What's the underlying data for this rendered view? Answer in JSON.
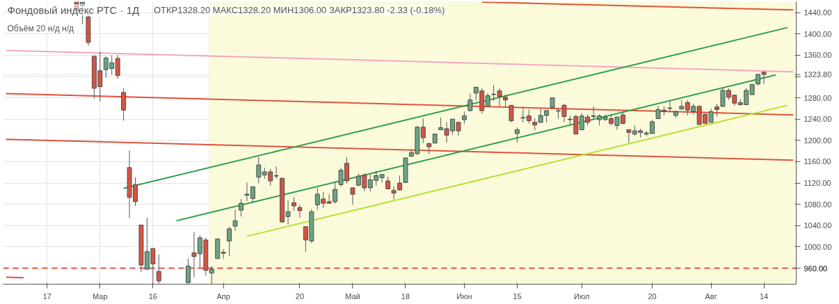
{
  "chart_data": {
    "type": "candlestick",
    "title": "Фондовый индекс РТС · 1Д",
    "subtitle": "Объём 20  н/д н/д",
    "annotations": [
      "ОТКР1328.20 МАКС1328.20 МИН1306.00 ЗАКР1323.80 -2.33 (-0.18%)"
    ],
    "categories": [
      null,
      null,
      null,
      null,
      null,
      null,
      null,
      "17",
      null,
      null,
      null,
      null,
      null,
      null,
      null,
      null,
      "Мар",
      null,
      null,
      null,
      null,
      null,
      null,
      null,
      null,
      "16",
      null,
      null,
      null,
      null,
      null,
      null,
      null,
      null,
      null,
      null,
      null,
      "Апр",
      null,
      null,
      null,
      null,
      null,
      null,
      null,
      null,
      null,
      null,
      null,
      null,
      "20",
      null,
      null,
      null,
      null,
      null,
      null,
      null,
      null,
      "Май",
      null,
      null,
      null,
      null,
      null,
      null,
      null,
      null,
      "18",
      null,
      null,
      null,
      null,
      null,
      null,
      null,
      null,
      null,
      "Июн",
      null,
      null,
      null,
      null,
      null,
      null,
      null,
      null,
      "15",
      null,
      null,
      null,
      null,
      null,
      null,
      null,
      null,
      null,
      null,
      "Июл",
      null,
      null,
      null,
      null,
      null,
      null,
      null,
      null,
      null,
      null,
      null,
      "20",
      null,
      null,
      null,
      null,
      null,
      null,
      null,
      null,
      null,
      "Авг",
      null,
      null,
      null,
      null,
      null,
      null,
      null,
      null,
      "14",
      null,
      null,
      null,
      null,
      null
    ],
    "ohlc": [
      null,
      null,
      null,
      null,
      null,
      null,
      null,
      null,
      null,
      null,
      null,
      null,
      [
        1460,
        1460,
        1444,
        1444
      ],
      [
        1453,
        1460,
        1418,
        1460
      ],
      [
        1432,
        1444,
        1378,
        1384
      ],
      [
        1358,
        1360,
        1278,
        1298
      ],
      [
        1331,
        1367,
        1273,
        1301
      ],
      [
        1333,
        1358,
        1318,
        1355
      ],
      [
        1335,
        1360,
        1324,
        1346
      ],
      [
        1354,
        1360,
        1316,
        1322
      ],
      [
        1290,
        1298,
        1237,
        1257
      ],
      [
        1149,
        1181,
        1054,
        1093
      ],
      [
        1117,
        1131,
        1077,
        1085
      ],
      [
        1041,
        1042,
        953,
        966
      ],
      [
        958,
        1055,
        957,
        991
      ],
      [
        997,
        997,
        931,
        968
      ],
      [
        954,
        986,
        931,
        936
      ],
      null,
      null,
      null,
      null,
      [
        933,
        978,
        931,
        964
      ],
      [
        989,
        1028,
        943,
        982
      ],
      [
        987,
        1022,
        961,
        1017
      ],
      [
        1013,
        1017,
        946,
        956
      ],
      [
        951,
        964,
        931,
        958
      ],
      [
        978,
        1015,
        978,
        1015
      ],
      [
        990,
        996,
        978,
        988
      ],
      [
        1011,
        1038,
        983,
        1034
      ],
      [
        1039,
        1070,
        1030,
        1049
      ],
      [
        1069,
        1090,
        1057,
        1082
      ],
      [
        1097,
        1121,
        1086,
        1099
      ],
      [
        1091,
        1113,
        1083,
        1113
      ],
      [
        1131,
        1169,
        1119,
        1154
      ],
      [
        1135,
        1149,
        1128,
        1141
      ],
      [
        1141,
        1147,
        1115,
        1124
      ],
      [
        1134,
        1151,
        1128,
        1133
      ],
      [
        1129,
        1129,
        1045,
        1047
      ],
      [
        1057,
        1088,
        1042,
        1066
      ],
      [
        1083,
        1093,
        1068,
        1077
      ],
      [
        1074,
        1079,
        1055,
        1068
      ],
      [
        1038,
        1039,
        991,
        1013
      ],
      [
        1011,
        1071,
        1007,
        1066
      ],
      [
        1079,
        1111,
        1070,
        1099
      ],
      [
        1090,
        1103,
        1073,
        1082
      ],
      [
        1085,
        1099,
        1082,
        1082
      ],
      [
        1085,
        1123,
        1081,
        1108
      ],
      [
        1117,
        1148,
        1113,
        1144
      ],
      [
        1157,
        1169,
        1119,
        1124
      ],
      [
        1111,
        1111,
        1079,
        1099
      ],
      [
        1116,
        1138,
        1114,
        1133
      ],
      [
        1135,
        1138,
        1105,
        1111
      ],
      [
        1111,
        1136,
        1104,
        1126
      ],
      [
        1125,
        1143,
        1115,
        1134
      ],
      [
        1130,
        1136,
        1121,
        1136
      ],
      [
        1124,
        1132,
        1109,
        1109
      ],
      [
        1106,
        1114,
        1089,
        1101
      ],
      [
        1120,
        1134,
        1106,
        1107
      ],
      [
        1121,
        1168,
        1120,
        1167
      ],
      [
        1170,
        1183,
        1170,
        1177
      ],
      [
        1175,
        1227,
        1173,
        1225
      ],
      [
        1225,
        1241,
        1195,
        1205
      ],
      [
        1194,
        1196,
        1174,
        1188
      ],
      [
        1195,
        1212,
        1195,
        1212
      ],
      [
        1220,
        1243,
        1220,
        1224
      ],
      [
        1222,
        1234,
        1196,
        1210
      ],
      [
        1218,
        1240,
        1211,
        1240
      ],
      [
        1234,
        1234,
        1209,
        1218
      ],
      [
        1239,
        1254,
        1231,
        1246
      ],
      [
        1256,
        1288,
        1254,
        1276
      ],
      [
        1289,
        1300,
        1275,
        1300
      ],
      [
        1293,
        1298,
        1250,
        1256
      ],
      [
        1264,
        1289,
        1264,
        1284
      ],
      [
        1286,
        1304,
        1274,
        1287
      ],
      [
        1293,
        1298,
        1264,
        1282
      ],
      [
        1281,
        1286,
        1264,
        1276
      ],
      [
        1266,
        1266,
        1234,
        1237
      ],
      [
        1213,
        1224,
        1196,
        1220
      ],
      [
        1242,
        1263,
        1234,
        1243
      ],
      [
        1246,
        1258,
        1232,
        1237
      ],
      [
        1234,
        1242,
        1219,
        1229
      ],
      [
        1234,
        1259,
        1233,
        1247
      ],
      [
        1247,
        1256,
        1234,
        1256
      ],
      [
        1262,
        1281,
        1261,
        1280
      ],
      [
        1256,
        1261,
        1241,
        1255
      ],
      [
        1266,
        1269,
        1234,
        1245
      ],
      [
        1240,
        1247,
        1230,
        1239
      ],
      [
        1245,
        1248,
        1212,
        1212
      ],
      [
        1220,
        1251,
        1220,
        1246
      ],
      [
        1244,
        1249,
        1228,
        1234
      ],
      [
        1245,
        1264,
        1239,
        1246
      ],
      [
        1239,
        1249,
        1228,
        1246
      ],
      [
        1239,
        1249,
        1237,
        1244
      ],
      [
        1241,
        1250,
        1228,
        1232
      ],
      [
        1228,
        1244,
        1220,
        1244
      ],
      [
        1248,
        1252,
        1230,
        1232
      ],
      [
        1220,
        1220,
        1196,
        1215
      ],
      [
        1212,
        1228,
        1209,
        1218
      ],
      [
        1215,
        1222,
        1205,
        1218
      ],
      [
        1212,
        1218,
        1208,
        1214
      ],
      [
        1213,
        1239,
        1213,
        1235
      ],
      [
        1241,
        1265,
        1240,
        1258
      ],
      [
        1257,
        1264,
        1247,
        1254
      ],
      [
        1261,
        1274,
        1253,
        1260
      ],
      [
        1247,
        1256,
        1242,
        1254
      ],
      [
        1259,
        1275,
        1258,
        1264
      ],
      [
        1271,
        1276,
        1247,
        1257
      ],
      [
        1254,
        1269,
        1249,
        1264
      ],
      [
        1264,
        1266,
        1229,
        1230
      ],
      [
        1249,
        1251,
        1231,
        1232
      ],
      [
        1234,
        1260,
        1234,
        1254
      ],
      [
        1263,
        1269,
        1245,
        1258
      ],
      [
        1264,
        1298,
        1263,
        1294
      ],
      [
        1294,
        1298,
        1276,
        1281
      ],
      [
        1285,
        1286,
        1265,
        1270
      ],
      [
        1271,
        1278,
        1267,
        1267
      ],
      [
        1267,
        1298,
        1267,
        1294
      ],
      [
        1286,
        1305,
        1285,
        1305
      ],
      [
        1306,
        1325,
        1303,
        1324
      ],
      [
        1328.2,
        1328.2,
        1306,
        1323.8
      ],
      null,
      null,
      null,
      null,
      null
    ],
    "series": [
      {
        "type": "line",
        "color": "#f4a6c0",
        "values": [
          1369,
          null,
          null,
          null,
          null,
          null,
          null,
          null,
          null,
          null,
          null,
          null,
          null,
          null,
          null,
          null,
          null,
          null,
          null,
          null,
          null,
          null,
          null,
          null,
          null,
          null,
          null,
          null,
          null,
          null,
          null,
          null,
          null,
          null,
          null,
          null,
          null,
          null,
          null,
          null,
          null,
          null,
          null,
          null,
          null,
          null,
          null,
          null,
          null,
          null,
          null,
          null,
          null,
          null,
          null,
          null,
          null,
          null,
          null,
          null,
          null,
          null,
          null,
          null,
          null,
          null,
          null,
          null,
          null,
          null,
          null,
          null,
          null,
          null,
          null,
          null,
          null,
          null,
          null,
          null,
          null,
          null,
          null,
          null,
          null,
          null,
          null,
          null,
          null,
          null,
          null,
          null,
          null,
          null,
          null,
          null,
          null,
          null,
          null,
          null,
          null,
          null,
          null,
          null,
          null,
          null,
          null,
          null,
          null,
          null,
          null,
          null,
          null,
          null,
          null,
          null,
          null,
          null,
          null,
          null,
          null,
          null,
          null,
          null,
          null,
          null,
          null,
          null,
          null,
          null,
          null,
          null,
          null,
          null,
          1329
        ]
      },
      {
        "type": "line",
        "color": "#e0533c",
        "values": [
          1288,
          null,
          null,
          null,
          null,
          null,
          null,
          null,
          null,
          null,
          null,
          null,
          null,
          null,
          null,
          null,
          null,
          null,
          null,
          null,
          null,
          null,
          null,
          null,
          null,
          null,
          null,
          null,
          null,
          null,
          null,
          null,
          null,
          null,
          null,
          null,
          null,
          null,
          null,
          null,
          null,
          null,
          null,
          null,
          null,
          null,
          null,
          null,
          null,
          null,
          null,
          null,
          null,
          null,
          null,
          null,
          null,
          null,
          null,
          null,
          null,
          null,
          null,
          null,
          null,
          null,
          null,
          null,
          null,
          null,
          null,
          null,
          null,
          null,
          null,
          null,
          null,
          null,
          null,
          null,
          null,
          null,
          null,
          null,
          null,
          null,
          null,
          null,
          null,
          null,
          null,
          null,
          null,
          null,
          null,
          null,
          null,
          null,
          null,
          null,
          null,
          null,
          null,
          null,
          null,
          null,
          null,
          null,
          null,
          null,
          null,
          null,
          null,
          null,
          null,
          null,
          null,
          null,
          null,
          null,
          null,
          null,
          null,
          null,
          null,
          null,
          null,
          null,
          null,
          null,
          null,
          null,
          null,
          null,
          1248
        ]
      },
      {
        "type": "line",
        "color": "#e0533c",
        "values": [
          1202,
          null,
          null,
          null,
          null,
          null,
          null,
          null,
          null,
          null,
          null,
          null,
          null,
          null,
          null,
          null,
          null,
          null,
          null,
          null,
          null,
          null,
          null,
          null,
          null,
          null,
          null,
          null,
          null,
          null,
          null,
          null,
          null,
          null,
          null,
          null,
          null,
          null,
          null,
          null,
          null,
          null,
          null,
          null,
          null,
          null,
          null,
          null,
          null,
          null,
          null,
          null,
          null,
          null,
          null,
          null,
          null,
          null,
          null,
          null,
          null,
          null,
          null,
          null,
          null,
          null,
          null,
          null,
          null,
          null,
          null,
          null,
          null,
          null,
          null,
          null,
          null,
          null,
          null,
          null,
          null,
          null,
          null,
          null,
          null,
          null,
          null,
          null,
          null,
          null,
          null,
          null,
          null,
          null,
          null,
          null,
          null,
          null,
          null,
          null,
          null,
          null,
          null,
          null,
          null,
          null,
          null,
          null,
          null,
          null,
          null,
          null,
          null,
          null,
          null,
          null,
          null,
          null,
          null,
          null,
          null,
          null,
          null,
          null,
          null,
          null,
          null,
          null,
          null,
          null,
          null,
          null,
          null,
          null,
          1163
        ]
      },
      {
        "type": "line",
        "color": "#e0533c",
        "values": [
          null,
          null,
          null,
          null,
          null,
          null,
          null,
          null,
          null,
          null,
          null,
          null,
          null,
          null,
          null,
          null,
          null,
          null,
          null,
          null,
          null,
          null,
          null,
          null,
          null,
          null,
          null,
          null,
          null,
          null,
          null,
          null,
          null,
          null,
          null,
          null,
          null,
          null,
          null,
          null,
          null,
          null,
          null,
          null,
          null,
          null,
          null,
          null,
          null,
          null,
          null,
          null,
          null,
          null,
          null,
          null,
          null,
          null,
          null,
          null,
          null,
          null,
          null,
          null,
          null,
          null,
          null,
          null,
          null,
          null,
          null,
          null,
          null,
          null,
          null,
          null,
          null,
          null,
          null,
          null,
          null,
          1460,
          null,
          null,
          null,
          null,
          null,
          null,
          null,
          null,
          null,
          null,
          null,
          null,
          null,
          null,
          null,
          null,
          null,
          null,
          null,
          null,
          null,
          null,
          null,
          null,
          null,
          null,
          null,
          null,
          null,
          null,
          null,
          null,
          null,
          null,
          null,
          null,
          null,
          null,
          null,
          null,
          null,
          null,
          null,
          null,
          null,
          null,
          null,
          null,
          null,
          null,
          null,
          null,
          1445
        ]
      },
      {
        "type": "line",
        "color": "#e0533c",
        "values": [
          943,
          null,
          null,
          942,
          null,
          null,
          null,
          null,
          null,
          null,
          null,
          null,
          null,
          null,
          null,
          null,
          null,
          null,
          null,
          null,
          null,
          null,
          null,
          null,
          null,
          null,
          null,
          null,
          null,
          null,
          null,
          null,
          null,
          null,
          null,
          null,
          null,
          null,
          null,
          null,
          null,
          null,
          null,
          null,
          null,
          null,
          null,
          null,
          null,
          null,
          null,
          null,
          null,
          null,
          null,
          null,
          null,
          null,
          null,
          null,
          null,
          null,
          null,
          null,
          null,
          null,
          null,
          null,
          null,
          null,
          null,
          null,
          null,
          null,
          null,
          null,
          null,
          null,
          null,
          null,
          null,
          null,
          null,
          null,
          null,
          null,
          null,
          null,
          null,
          null,
          null,
          null,
          null,
          null,
          null,
          null,
          null,
          null,
          null,
          null,
          null,
          null,
          null,
          null,
          null,
          null,
          null,
          null,
          null,
          null,
          null,
          null,
          null,
          null,
          null,
          null,
          null,
          null,
          null,
          null,
          null,
          null,
          null,
          null,
          null,
          null,
          null,
          null,
          null,
          null,
          null,
          null,
          null,
          null,
          null
        ]
      },
      {
        "type": "line",
        "color": "#2e9e4a",
        "values": [
          null,
          null,
          null,
          null,
          null,
          null,
          null,
          null,
          null,
          null,
          null,
          null,
          null,
          null,
          null,
          null,
          null,
          null,
          null,
          null,
          1110,
          null,
          null,
          null,
          null,
          null,
          null,
          null,
          null,
          null,
          null,
          null,
          null,
          null,
          null,
          null,
          null,
          null,
          null,
          null,
          null,
          null,
          null,
          null,
          null,
          null,
          null,
          null,
          null,
          null,
          null,
          null,
          null,
          null,
          null,
          null,
          null,
          null,
          null,
          null,
          null,
          null,
          null,
          null,
          null,
          null,
          null,
          null,
          null,
          null,
          null,
          null,
          null,
          null,
          null,
          null,
          null,
          null,
          null,
          null,
          null,
          null,
          null,
          null,
          null,
          null,
          null,
          null,
          null,
          null,
          null,
          null,
          null,
          null,
          null,
          null,
          null,
          null,
          null,
          null,
          null,
          null,
          null,
          null,
          null,
          null,
          null,
          null,
          null,
          null,
          null,
          null,
          null,
          null,
          null,
          null,
          null,
          null,
          null,
          null,
          null,
          null,
          null,
          null,
          null,
          null,
          null,
          null,
          null,
          null,
          null,
          null,
          null,
          1412,
          null
        ]
      },
      {
        "type": "line",
        "color": "#2e9e4a",
        "values": [
          null,
          null,
          null,
          null,
          null,
          null,
          null,
          null,
          null,
          null,
          null,
          null,
          null,
          null,
          null,
          null,
          null,
          null,
          null,
          null,
          null,
          null,
          null,
          null,
          null,
          null,
          null,
          null,
          null,
          1049,
          null,
          null,
          null,
          null,
          null,
          null,
          null,
          null,
          null,
          null,
          null,
          null,
          null,
          null,
          null,
          null,
          null,
          null,
          null,
          null,
          null,
          null,
          null,
          null,
          null,
          null,
          null,
          null,
          null,
          null,
          null,
          null,
          null,
          null,
          null,
          null,
          null,
          null,
          null,
          null,
          null,
          null,
          null,
          null,
          null,
          null,
          null,
          null,
          null,
          null,
          null,
          null,
          null,
          null,
          null,
          null,
          null,
          null,
          null,
          null,
          null,
          null,
          null,
          null,
          null,
          null,
          null,
          null,
          null,
          null,
          null,
          null,
          null,
          null,
          null,
          null,
          null,
          null,
          null,
          null,
          null,
          null,
          null,
          null,
          null,
          null,
          null,
          null,
          null,
          null,
          null,
          null,
          null,
          null,
          null,
          null,
          null,
          null,
          null,
          null,
          null,
          1323,
          null,
          null,
          null
        ]
      },
      {
        "type": "line",
        "color": "#b5e12d",
        "values": [
          null,
          null,
          null,
          null,
          null,
          null,
          null,
          null,
          null,
          null,
          null,
          null,
          null,
          null,
          null,
          null,
          null,
          null,
          null,
          null,
          null,
          null,
          null,
          null,
          null,
          null,
          null,
          null,
          null,
          null,
          null,
          null,
          null,
          null,
          null,
          null,
          null,
          null,
          null,
          null,
          null,
          1020,
          null,
          null,
          null,
          null,
          null,
          null,
          null,
          null,
          null,
          null,
          null,
          null,
          null,
          null,
          null,
          null,
          null,
          null,
          null,
          null,
          null,
          null,
          null,
          null,
          null,
          null,
          null,
          null,
          null,
          null,
          null,
          null,
          null,
          null,
          null,
          null,
          null,
          null,
          null,
          null,
          null,
          null,
          null,
          null,
          null,
          null,
          null,
          null,
          null,
          null,
          null,
          null,
          null,
          null,
          null,
          null,
          null,
          null,
          null,
          null,
          null,
          null,
          null,
          null,
          null,
          null,
          null,
          null,
          null,
          null,
          null,
          null,
          null,
          null,
          null,
          null,
          null,
          null,
          null,
          null,
          null,
          null,
          null,
          null,
          null,
          null,
          null,
          null,
          null,
          null,
          null,
          1266,
          null
        ]
      }
    ],
    "ref_lines": [
      {
        "axis": "y",
        "value": 960,
        "label": "960.00",
        "color": "#e0533c",
        "line_style": "dashed"
      }
    ],
    "ylim": [
      930,
      1460.5
    ],
    "yticks": [
      {
        "value": 960,
        "label": null
      },
      {
        "value": 1000,
        "label": "1000.00"
      },
      {
        "value": 1040,
        "label": "1040.00"
      },
      {
        "value": 1080,
        "label": "1080.00"
      },
      {
        "value": 1120,
        "label": "1120.00"
      },
      {
        "value": 1160,
        "label": "1160.00"
      },
      {
        "value": 1200,
        "label": "1200.00"
      },
      {
        "value": 1240,
        "label": "1240.00"
      },
      {
        "value": 1280,
        "label": "1280.00"
      },
      {
        "value": 1320,
        "label": null
      },
      {
        "value": 1323.8,
        "label": "1323.80"
      },
      {
        "value": 1360,
        "label": "1360.00"
      },
      {
        "value": 1400,
        "label": "1400.00"
      },
      {
        "value": 1440,
        "label": "1440.00"
      }
    ],
    "grid": true
  }
}
